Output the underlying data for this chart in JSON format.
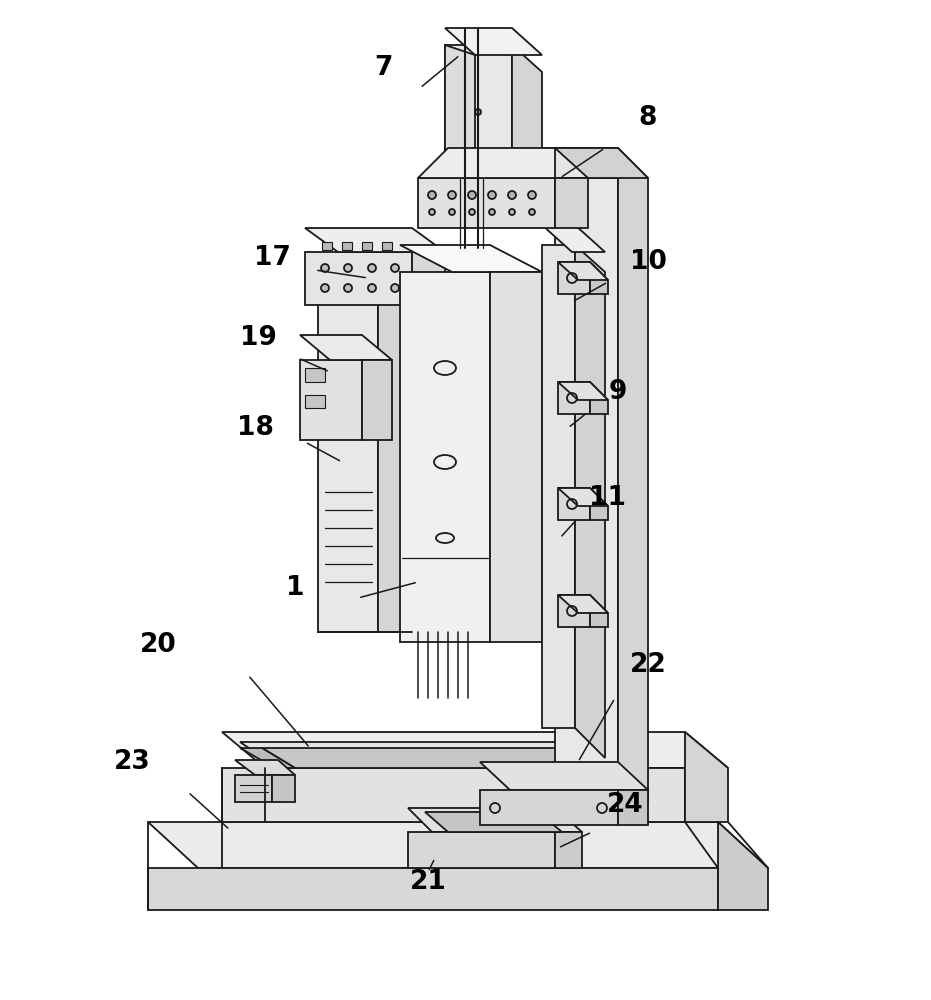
{
  "background_color": "#ffffff",
  "line_color": "#1a1a1a",
  "lw": 1.3,
  "fig_width": 9.31,
  "fig_height": 10.0,
  "annotations": [
    [
      "7",
      383,
      68,
      420,
      88,
      460,
      55
    ],
    [
      "8",
      648,
      118,
      605,
      148,
      560,
      178
    ],
    [
      "17",
      272,
      258,
      315,
      270,
      368,
      278
    ],
    [
      "19",
      258,
      338,
      298,
      358,
      330,
      372
    ],
    [
      "18",
      255,
      428,
      305,
      442,
      342,
      462
    ],
    [
      "10",
      648,
      262,
      608,
      282,
      572,
      302
    ],
    [
      "9",
      618,
      392,
      588,
      412,
      568,
      428
    ],
    [
      "11",
      608,
      498,
      578,
      518,
      560,
      538
    ],
    [
      "1",
      295,
      588,
      358,
      598,
      418,
      582
    ],
    [
      "20",
      158,
      645,
      248,
      675,
      310,
      748
    ],
    [
      "22",
      648,
      665,
      615,
      698,
      578,
      762
    ],
    [
      "23",
      132,
      762,
      188,
      792,
      230,
      830
    ],
    [
      "21",
      428,
      882,
      428,
      872,
      435,
      858
    ],
    [
      "24",
      625,
      805,
      592,
      832,
      558,
      848
    ]
  ]
}
